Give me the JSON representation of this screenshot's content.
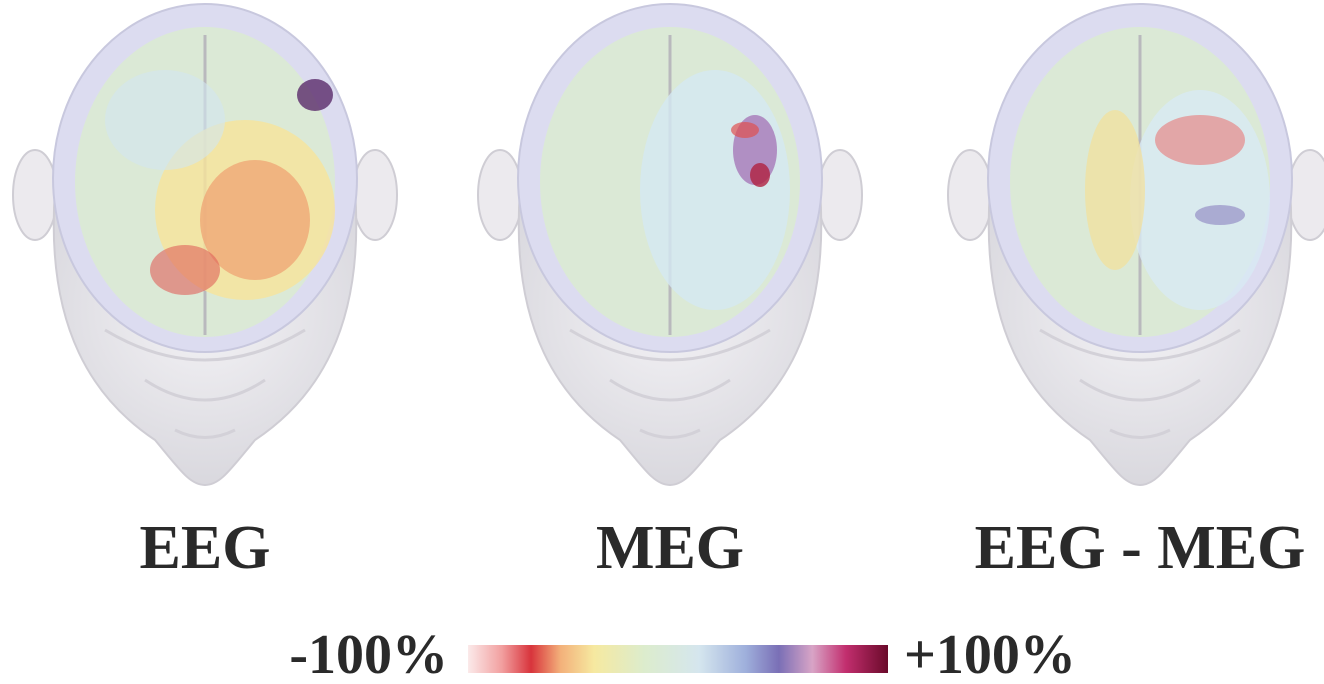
{
  "panels": [
    {
      "label": "EEG"
    },
    {
      "label": "MEG"
    },
    {
      "label": "EEG - MEG"
    }
  ],
  "colorbar": {
    "min_label": "-100%",
    "max_label": "+100%"
  }
}
